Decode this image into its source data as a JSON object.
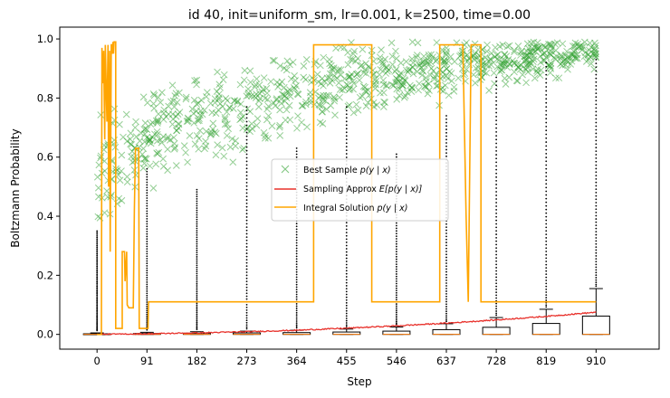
{
  "chart_data": {
    "type": "line",
    "title": "id 40, init=uniform_sm, lr=0.001, k=2500, time=0.00",
    "xlabel": "Step",
    "ylabel": "Boltzmann Probability",
    "xlim": [
      -68,
      1025
    ],
    "ylim": [
      -0.05,
      1.04
    ],
    "xticks": [
      0,
      91,
      182,
      273,
      364,
      455,
      546,
      637,
      728,
      819,
      910
    ],
    "yticks": [
      0.0,
      0.2,
      0.4,
      0.6,
      0.8,
      1.0
    ],
    "ytick_labels": [
      "0.0",
      "0.2",
      "0.4",
      "0.6",
      "0.8",
      "1.0"
    ],
    "grid": false,
    "legend_position": "center-right",
    "legend": [
      {
        "label_prefix": "Best Sample ",
        "label_math": "p(y | x)",
        "label_suffix": "",
        "color": "#2ca02c",
        "marker": "x"
      },
      {
        "label_prefix": "Sampling Approx ",
        "label_math": "E[p(y | x)]",
        "label_suffix": "",
        "color": "#e8302a",
        "marker": "line"
      },
      {
        "label_prefix": "Integral Solution ",
        "label_math": "p(y | x)",
        "label_suffix": "",
        "color": "#ffa500",
        "marker": "line"
      }
    ],
    "integral_solution": {
      "name": "Integral Solution p(y | x)",
      "color": "#ffa500",
      "points": [
        [
          0,
          0.0
        ],
        [
          8,
          0.0
        ],
        [
          9,
          0.97
        ],
        [
          11,
          0.85
        ],
        [
          12,
          0.96
        ],
        [
          14,
          0.66
        ],
        [
          15,
          0.98
        ],
        [
          18,
          0.72
        ],
        [
          20,
          0.98
        ],
        [
          21,
          0.5
        ],
        [
          23,
          0.96
        ],
        [
          24,
          0.28
        ],
        [
          26,
          0.98
        ],
        [
          27,
          0.98
        ],
        [
          28,
          0.95
        ],
        [
          29,
          0.99
        ],
        [
          30,
          0.95
        ],
        [
          31,
          0.99
        ],
        [
          34,
          0.99
        ],
        [
          34,
          0.02
        ],
        [
          46,
          0.02
        ],
        [
          46,
          0.28
        ],
        [
          50,
          0.28
        ],
        [
          51,
          0.18
        ],
        [
          54,
          0.28
        ],
        [
          55,
          0.1
        ],
        [
          58,
          0.09
        ],
        [
          66,
          0.09
        ],
        [
          68,
          0.42
        ],
        [
          70,
          0.63
        ],
        [
          76,
          0.63
        ],
        [
          77,
          0.02
        ],
        [
          93,
          0.02
        ],
        [
          94,
          0.11
        ],
        [
          128,
          0.11
        ],
        [
          130,
          0.11
        ],
        [
          395,
          0.11
        ],
        [
          395,
          0.98
        ],
        [
          501,
          0.98
        ],
        [
          501,
          0.11
        ],
        [
          625,
          0.11
        ],
        [
          625,
          0.98
        ],
        [
          667,
          0.98
        ],
        [
          673,
          0.4
        ],
        [
          677,
          0.11
        ],
        [
          682,
          0.98
        ],
        [
          700,
          0.98
        ],
        [
          700,
          0.11
        ],
        [
          910,
          0.11
        ]
      ]
    },
    "sampling_approx": {
      "name": "Sampling Approx E[p(y | x)]",
      "color": "#e8302a",
      "points": [
        [
          0,
          0.0
        ],
        [
          91,
          0.002
        ],
        [
          182,
          0.005
        ],
        [
          273,
          0.009
        ],
        [
          364,
          0.014
        ],
        [
          455,
          0.021
        ],
        [
          546,
          0.029
        ],
        [
          637,
          0.038
        ],
        [
          728,
          0.049
        ],
        [
          819,
          0.061
        ],
        [
          910,
          0.075
        ]
      ]
    },
    "best_sample": {
      "name": "Best Sample p(y | x)",
      "color": "#2ca02c",
      "trend": [
        [
          0,
          0.55
        ],
        [
          91,
          0.66
        ],
        [
          182,
          0.73
        ],
        [
          273,
          0.78
        ],
        [
          364,
          0.82
        ],
        [
          455,
          0.86
        ],
        [
          546,
          0.88
        ],
        [
          637,
          0.9
        ],
        [
          728,
          0.92
        ],
        [
          819,
          0.94
        ],
        [
          910,
          0.96
        ]
      ],
      "count": 900
    },
    "boxplots": [
      {
        "x": 0,
        "q1": 0.0,
        "median": 0.0,
        "q3": 0.002,
        "whisker_low": 0.0,
        "whisker_high": 0.005,
        "outlier_max": 0.35
      },
      {
        "x": 91,
        "q1": 0.0,
        "median": 0.0,
        "q3": 0.003,
        "whisker_low": 0.0,
        "whisker_high": 0.007,
        "outlier_max": 0.56
      },
      {
        "x": 182,
        "q1": 0.0,
        "median": 0.0,
        "q3": 0.004,
        "whisker_low": 0.0,
        "whisker_high": 0.009,
        "outlier_max": 0.49
      },
      {
        "x": 273,
        "q1": 0.0,
        "median": 0.0,
        "q3": 0.005,
        "whisker_low": 0.0,
        "whisker_high": 0.011,
        "outlier_max": 0.77
      },
      {
        "x": 364,
        "q1": 0.0,
        "median": 0.0,
        "q3": 0.006,
        "whisker_low": 0.0,
        "whisker_high": 0.014,
        "outlier_max": 0.63
      },
      {
        "x": 455,
        "q1": 0.0,
        "median": 0.0,
        "q3": 0.008,
        "whisker_low": 0.0,
        "whisker_high": 0.018,
        "outlier_max": 0.77
      },
      {
        "x": 546,
        "q1": 0.0,
        "median": 0.0,
        "q3": 0.011,
        "whisker_low": 0.0,
        "whisker_high": 0.025,
        "outlier_max": 0.61
      },
      {
        "x": 637,
        "q1": 0.0,
        "median": 0.0,
        "q3": 0.016,
        "whisker_low": 0.0,
        "whisker_high": 0.036,
        "outlier_max": 0.74
      },
      {
        "x": 728,
        "q1": 0.0,
        "median": 0.0,
        "q3": 0.024,
        "whisker_low": 0.0,
        "whisker_high": 0.057,
        "outlier_max": 0.87
      },
      {
        "x": 819,
        "q1": 0.0,
        "median": 0.0,
        "q3": 0.037,
        "whisker_low": 0.0,
        "whisker_high": 0.085,
        "outlier_max": 0.92
      },
      {
        "x": 910,
        "q1": 0.0,
        "median": 0.0,
        "q3": 0.062,
        "whisker_low": 0.0,
        "whisker_high": 0.155,
        "outlier_max": 0.93
      }
    ]
  }
}
